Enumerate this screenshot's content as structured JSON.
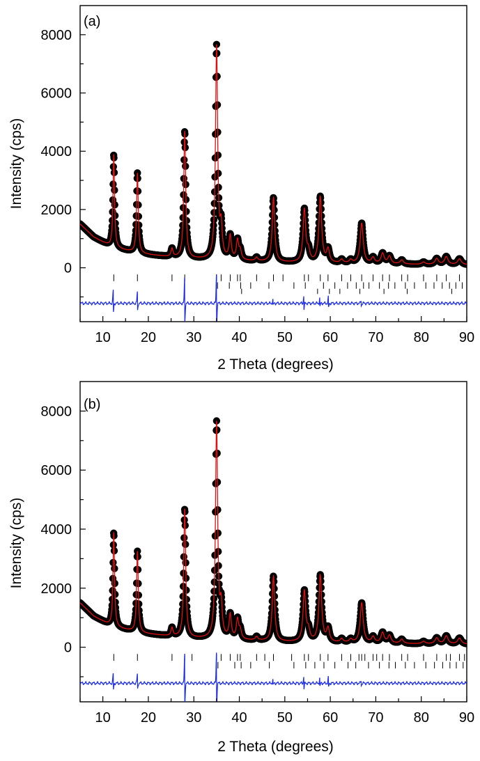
{
  "chart_data": [
    {
      "type": "line",
      "panel_label": "(a)",
      "xlabel": "2 Theta (degrees)",
      "ylabel": "Intensity (cps)",
      "xlim": [
        5,
        90
      ],
      "ylim": [
        -1850,
        9000
      ],
      "x_ticks": [
        10,
        20,
        30,
        40,
        50,
        60,
        70,
        80,
        90
      ],
      "y_ticks": [
        0,
        2000,
        4000,
        6000,
        8000
      ],
      "background": {
        "points": [
          [
            5,
            1500
          ],
          [
            8,
            1050
          ],
          [
            12,
            700
          ],
          [
            18,
            480
          ],
          [
            25,
            360
          ],
          [
            30,
            300
          ],
          [
            35,
            270
          ],
          [
            40,
            240
          ],
          [
            50,
            180
          ],
          [
            60,
            150
          ],
          [
            70,
            130
          ],
          [
            80,
            110
          ],
          [
            90,
            100
          ]
        ]
      },
      "peaks": [
        {
          "x": 12.4,
          "height": 3200
        },
        {
          "x": 17.6,
          "height": 2750
        },
        {
          "x": 25.2,
          "height": 280
        },
        {
          "x": 28.0,
          "height": 4350
        },
        {
          "x": 35.0,
          "height": 7300
        },
        {
          "x": 36.0,
          "height": 1000
        },
        {
          "x": 38.0,
          "height": 800
        },
        {
          "x": 39.6,
          "height": 650
        },
        {
          "x": 40.2,
          "height": 300
        },
        {
          "x": 43.8,
          "height": 120
        },
        {
          "x": 47.5,
          "height": 2200
        },
        {
          "x": 54.3,
          "height": 1800
        },
        {
          "x": 55.2,
          "height": 350
        },
        {
          "x": 57.8,
          "height": 2250
        },
        {
          "x": 59.5,
          "height": 450
        },
        {
          "x": 62.5,
          "height": 120
        },
        {
          "x": 64.5,
          "height": 110
        },
        {
          "x": 66.9,
          "height": 1380
        },
        {
          "x": 69.4,
          "height": 200
        },
        {
          "x": 71.5,
          "height": 350
        },
        {
          "x": 73.0,
          "height": 260
        },
        {
          "x": 75.7,
          "height": 140
        },
        {
          "x": 80.5,
          "height": 80
        },
        {
          "x": 83.4,
          "height": 200
        },
        {
          "x": 85.5,
          "height": 270
        },
        {
          "x": 88.4,
          "height": 200
        }
      ],
      "bragg_row1": [
        12.4,
        17.6,
        25.2,
        28.0,
        35.0,
        36.0,
        38.0,
        39.6,
        40.2,
        43.8,
        47.5,
        49.6,
        54.3,
        55.2,
        57.8,
        59.5,
        62.5,
        64.5,
        66.9,
        69.4,
        71.5,
        73.0,
        75.7,
        77.0,
        80.5,
        83.4,
        85.5,
        88.4
      ],
      "bragg_row2": [
        35.2,
        37.8,
        40.3,
        42.5,
        46.5,
        52.0,
        54.5,
        58.5,
        61.0,
        63.8,
        65.7,
        67.3,
        68.5,
        70.8,
        72.8,
        74.2,
        76.5,
        78.5,
        81.0,
        82.8,
        84.6,
        86.2,
        87.6,
        89.0
      ],
      "bragg_row3": [
        40.5,
        57.2,
        59.8,
        62.1,
        66.5,
        71.8,
        76.9,
        86.7
      ],
      "diff_peaks": [
        {
          "x": 12.3,
          "amp": 450
        },
        {
          "x": 17.6,
          "amp": 380
        },
        {
          "x": 28.0,
          "amp": 900
        },
        {
          "x": 35.0,
          "amp": 1050
        },
        {
          "x": 47.4,
          "amp": 120
        },
        {
          "x": 54.2,
          "amp": 280
        },
        {
          "x": 57.7,
          "amp": 180
        },
        {
          "x": 59.6,
          "amp": 220
        },
        {
          "x": 66.8,
          "amp": 110
        }
      ],
      "colors": {
        "observed": "#000000",
        "calculated": "#e01010",
        "difference": "#1a2be8",
        "bragg": "#000000"
      }
    },
    {
      "type": "line",
      "panel_label": "(b)",
      "xlabel": "2 Theta (degrees)",
      "ylabel": "Intensity (cps)",
      "xlim": [
        5,
        90
      ],
      "ylim": [
        -1850,
        9000
      ],
      "x_ticks": [
        10,
        20,
        30,
        40,
        50,
        60,
        70,
        80,
        90
      ],
      "y_ticks": [
        0,
        2000,
        4000,
        6000,
        8000
      ],
      "background": {
        "points": [
          [
            5,
            1500
          ],
          [
            8,
            1050
          ],
          [
            12,
            700
          ],
          [
            18,
            480
          ],
          [
            25,
            360
          ],
          [
            30,
            300
          ],
          [
            35,
            270
          ],
          [
            40,
            240
          ],
          [
            50,
            180
          ],
          [
            60,
            150
          ],
          [
            70,
            130
          ],
          [
            80,
            110
          ],
          [
            90,
            100
          ]
        ]
      },
      "peaks": [
        {
          "x": 12.4,
          "height": 3200
        },
        {
          "x": 17.6,
          "height": 2750
        },
        {
          "x": 25.2,
          "height": 280
        },
        {
          "x": 28.0,
          "height": 4350
        },
        {
          "x": 35.0,
          "height": 7300
        },
        {
          "x": 36.0,
          "height": 1000
        },
        {
          "x": 38.0,
          "height": 800
        },
        {
          "x": 39.6,
          "height": 650
        },
        {
          "x": 40.2,
          "height": 300
        },
        {
          "x": 43.8,
          "height": 120
        },
        {
          "x": 47.5,
          "height": 2200
        },
        {
          "x": 54.3,
          "height": 1700
        },
        {
          "x": 55.2,
          "height": 350
        },
        {
          "x": 57.8,
          "height": 2250
        },
        {
          "x": 59.5,
          "height": 450
        },
        {
          "x": 62.5,
          "height": 120
        },
        {
          "x": 64.5,
          "height": 110
        },
        {
          "x": 66.9,
          "height": 1350
        },
        {
          "x": 69.4,
          "height": 200
        },
        {
          "x": 71.5,
          "height": 350
        },
        {
          "x": 73.0,
          "height": 260
        },
        {
          "x": 75.7,
          "height": 140
        },
        {
          "x": 80.5,
          "height": 80
        },
        {
          "x": 83.4,
          "height": 200
        },
        {
          "x": 85.5,
          "height": 270
        },
        {
          "x": 88.4,
          "height": 200
        }
      ],
      "bragg_row1": [
        12.4,
        17.6,
        25.2,
        28.0,
        29.6,
        35.0,
        36.0,
        38.0,
        39.6,
        40.2,
        43.8,
        45.6,
        47.5,
        51.5,
        54.3,
        55.2,
        57.8,
        59.5,
        62.5,
        64.5,
        66.3,
        66.9,
        67.6,
        69.4,
        70.2,
        71.5,
        73.0,
        75.7,
        77.0,
        80.5,
        83.4,
        85.5,
        86.4,
        88.4,
        89.5
      ],
      "bragg_row2": [
        35.3,
        39.0,
        40.4,
        42.5,
        46.6,
        52.0,
        54.6,
        56.6,
        58.6,
        61.0,
        63.9,
        65.6,
        68.4,
        70.8,
        72.9,
        74.3,
        76.5,
        78.5,
        81.0,
        82.9,
        84.7,
        86.3,
        87.7,
        89.2
      ],
      "bragg_row3": [],
      "diff_peaks": [
        {
          "x": 12.3,
          "amp": 320
        },
        {
          "x": 17.6,
          "amp": 300
        },
        {
          "x": 28.0,
          "amp": 1000
        },
        {
          "x": 35.0,
          "amp": 1100
        },
        {
          "x": 47.4,
          "amp": 110
        },
        {
          "x": 54.2,
          "amp": 250
        },
        {
          "x": 57.7,
          "amp": 170
        },
        {
          "x": 59.6,
          "amp": 200
        },
        {
          "x": 66.8,
          "amp": 100
        }
      ],
      "colors": {
        "observed": "#000000",
        "calculated": "#e01010",
        "difference": "#1a2be8",
        "bragg": "#000000"
      }
    }
  ]
}
